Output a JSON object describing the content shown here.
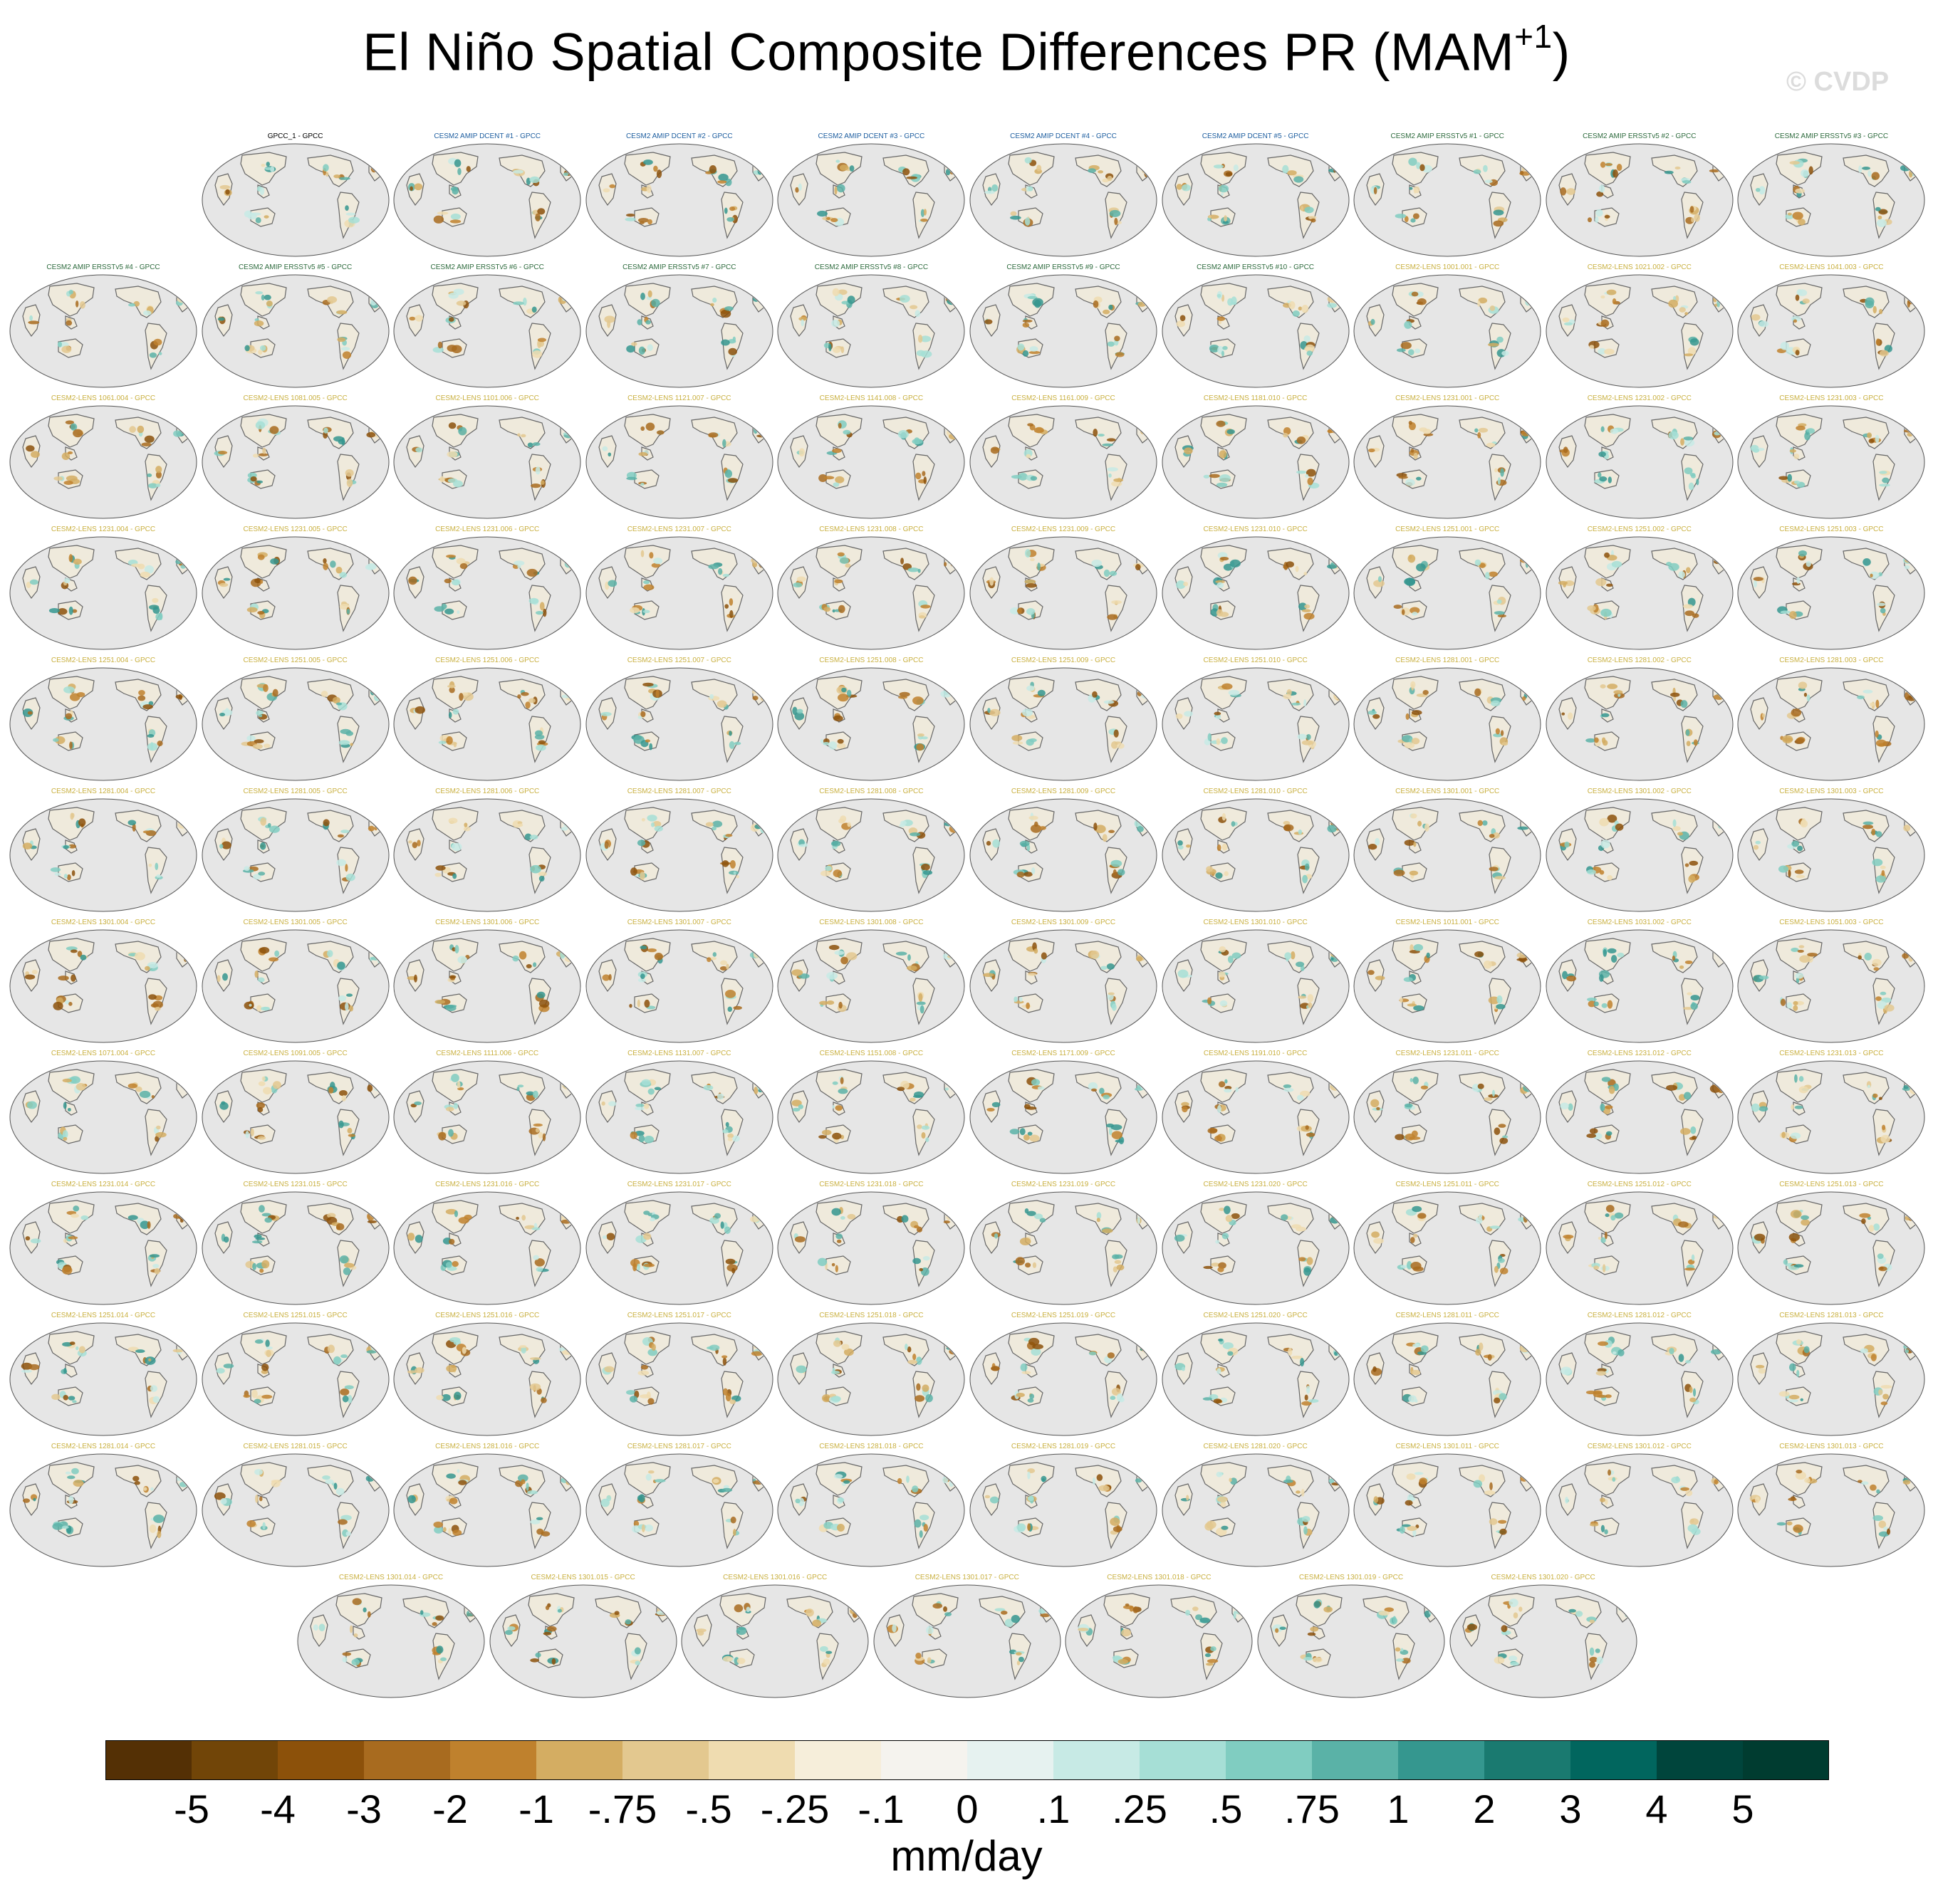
{
  "title_main": "El Niño Spatial Composite Differences PR (MAM",
  "title_sup": "+1",
  "title_close": ")",
  "watermark": "© CVDP",
  "colors": {
    "ocean": "#e6e6e6",
    "land": "#efeadc",
    "coast": "#666666",
    "title_obs": "#000000",
    "title_dcent": "#1f5fa0",
    "title_ersst": "#2e6b3e",
    "title_lens": "#c9b040"
  },
  "chart_data": {
    "type": "panel-map-grid",
    "units": "mm/day",
    "colorbar": {
      "labels": [
        "-5",
        "-4",
        "-3",
        "-2",
        "-1",
        "-.75",
        "-.5",
        "-.25",
        "-.1",
        "0",
        ".1",
        ".25",
        ".5",
        ".75",
        "1",
        "2",
        "3",
        "4",
        "5"
      ],
      "colors": [
        "#543005",
        "#714508",
        "#8c510a",
        "#a86b1f",
        "#bf812d",
        "#d4ad62",
        "#e3c88f",
        "#efdcb0",
        "#f6eeda",
        "#f5f3ee",
        "#e6f2f0",
        "#c7eae5",
        "#a6dfd6",
        "#80cdc1",
        "#5ab2a7",
        "#35978f",
        "#1a7a70",
        "#01665e",
        "#00453c",
        "#003c30"
      ]
    },
    "panels": [
      {
        "label": "GPCC_1 - GPCC",
        "group": "obs"
      },
      {
        "label": "CESM2 AMIP DCENT #1 - GPCC",
        "group": "dcent"
      },
      {
        "label": "CESM2 AMIP DCENT #2 - GPCC",
        "group": "dcent"
      },
      {
        "label": "CESM2 AMIP DCENT #3 - GPCC",
        "group": "dcent"
      },
      {
        "label": "CESM2 AMIP DCENT #4 - GPCC",
        "group": "dcent"
      },
      {
        "label": "CESM2 AMIP DCENT #5 - GPCC",
        "group": "dcent"
      },
      {
        "label": "CESM2 AMIP ERSSTv5 #1 - GPCC",
        "group": "ersst"
      },
      {
        "label": "CESM2 AMIP ERSSTv5 #2 - GPCC",
        "group": "ersst"
      },
      {
        "label": "CESM2 AMIP ERSSTv5 #3 - GPCC",
        "group": "ersst"
      },
      {
        "label": "CESM2 AMIP ERSSTv5 #4 - GPCC",
        "group": "ersst"
      },
      {
        "label": "CESM2 AMIP ERSSTv5 #5 - GPCC",
        "group": "ersst"
      },
      {
        "label": "CESM2 AMIP ERSSTv5 #6 - GPCC",
        "group": "ersst"
      },
      {
        "label": "CESM2 AMIP ERSSTv5 #7 - GPCC",
        "group": "ersst"
      },
      {
        "label": "CESM2 AMIP ERSSTv5 #8 - GPCC",
        "group": "ersst"
      },
      {
        "label": "CESM2 AMIP ERSSTv5 #9 - GPCC",
        "group": "ersst"
      },
      {
        "label": "CESM2 AMIP ERSSTv5 #10 - GPCC",
        "group": "ersst"
      },
      {
        "label": "CESM2-LENS 1001.001 - GPCC",
        "group": "lens"
      },
      {
        "label": "CESM2-LENS 1021.002 - GPCC",
        "group": "lens"
      },
      {
        "label": "CESM2-LENS 1041.003 - GPCC",
        "group": "lens"
      },
      {
        "label": "CESM2-LENS 1061.004 - GPCC",
        "group": "lens"
      },
      {
        "label": "CESM2-LENS 1081.005 - GPCC",
        "group": "lens"
      },
      {
        "label": "CESM2-LENS 1101.006 - GPCC",
        "group": "lens"
      },
      {
        "label": "CESM2-LENS 1121.007 - GPCC",
        "group": "lens"
      },
      {
        "label": "CESM2-LENS 1141.008 - GPCC",
        "group": "lens"
      },
      {
        "label": "CESM2-LENS 1161.009 - GPCC",
        "group": "lens"
      },
      {
        "label": "CESM2-LENS 1181.010 - GPCC",
        "group": "lens"
      },
      {
        "label": "CESM2-LENS 1231.001 - GPCC",
        "group": "lens"
      },
      {
        "label": "CESM2-LENS 1231.002 - GPCC",
        "group": "lens"
      },
      {
        "label": "CESM2-LENS 1231.003 - GPCC",
        "group": "lens"
      },
      {
        "label": "CESM2-LENS 1231.004 - GPCC",
        "group": "lens"
      },
      {
        "label": "CESM2-LENS 1231.005 - GPCC",
        "group": "lens"
      },
      {
        "label": "CESM2-LENS 1231.006 - GPCC",
        "group": "lens"
      },
      {
        "label": "CESM2-LENS 1231.007 - GPCC",
        "group": "lens"
      },
      {
        "label": "CESM2-LENS 1231.008 - GPCC",
        "group": "lens"
      },
      {
        "label": "CESM2-LENS 1231.009 - GPCC",
        "group": "lens"
      },
      {
        "label": "CESM2-LENS 1231.010 - GPCC",
        "group": "lens"
      },
      {
        "label": "CESM2-LENS 1251.001 - GPCC",
        "group": "lens"
      },
      {
        "label": "CESM2-LENS 1251.002 - GPCC",
        "group": "lens"
      },
      {
        "label": "CESM2-LENS 1251.003 - GPCC",
        "group": "lens"
      },
      {
        "label": "CESM2-LENS 1251.004 - GPCC",
        "group": "lens"
      },
      {
        "label": "CESM2-LENS 1251.005 - GPCC",
        "group": "lens"
      },
      {
        "label": "CESM2-LENS 1251.006 - GPCC",
        "group": "lens"
      },
      {
        "label": "CESM2-LENS 1251.007 - GPCC",
        "group": "lens"
      },
      {
        "label": "CESM2-LENS 1251.008 - GPCC",
        "group": "lens"
      },
      {
        "label": "CESM2-LENS 1251.009 - GPCC",
        "group": "lens"
      },
      {
        "label": "CESM2-LENS 1251.010 - GPCC",
        "group": "lens"
      },
      {
        "label": "CESM2-LENS 1281.001 - GPCC",
        "group": "lens"
      },
      {
        "label": "CESM2-LENS 1281.002 - GPCC",
        "group": "lens"
      },
      {
        "label": "CESM2-LENS 1281.003 - GPCC",
        "group": "lens"
      },
      {
        "label": "CESM2-LENS 1281.004 - GPCC",
        "group": "lens"
      },
      {
        "label": "CESM2-LENS 1281.005 - GPCC",
        "group": "lens"
      },
      {
        "label": "CESM2-LENS 1281.006 - GPCC",
        "group": "lens"
      },
      {
        "label": "CESM2-LENS 1281.007 - GPCC",
        "group": "lens"
      },
      {
        "label": "CESM2-LENS 1281.008 - GPCC",
        "group": "lens"
      },
      {
        "label": "CESM2-LENS 1281.009 - GPCC",
        "group": "lens"
      },
      {
        "label": "CESM2-LENS 1281.010 - GPCC",
        "group": "lens"
      },
      {
        "label": "CESM2-LENS 1301.001 - GPCC",
        "group": "lens"
      },
      {
        "label": "CESM2-LENS 1301.002 - GPCC",
        "group": "lens"
      },
      {
        "label": "CESM2-LENS 1301.003 - GPCC",
        "group": "lens"
      },
      {
        "label": "CESM2-LENS 1301.004 - GPCC",
        "group": "lens"
      },
      {
        "label": "CESM2-LENS 1301.005 - GPCC",
        "group": "lens"
      },
      {
        "label": "CESM2-LENS 1301.006 - GPCC",
        "group": "lens"
      },
      {
        "label": "CESM2-LENS 1301.007 - GPCC",
        "group": "lens"
      },
      {
        "label": "CESM2-LENS 1301.008 - GPCC",
        "group": "lens"
      },
      {
        "label": "CESM2-LENS 1301.009 - GPCC",
        "group": "lens"
      },
      {
        "label": "CESM2-LENS 1301.010 - GPCC",
        "group": "lens"
      },
      {
        "label": "CESM2-LENS 1011.001 - GPCC",
        "group": "lens"
      },
      {
        "label": "CESM2-LENS 1031.002 - GPCC",
        "group": "lens"
      },
      {
        "label": "CESM2-LENS 1051.003 - GPCC",
        "group": "lens"
      },
      {
        "label": "CESM2-LENS 1071.004 - GPCC",
        "group": "lens"
      },
      {
        "label": "CESM2-LENS 1091.005 - GPCC",
        "group": "lens"
      },
      {
        "label": "CESM2-LENS 1111.006 - GPCC",
        "group": "lens"
      },
      {
        "label": "CESM2-LENS 1131.007 - GPCC",
        "group": "lens"
      },
      {
        "label": "CESM2-LENS 1151.008 - GPCC",
        "group": "lens"
      },
      {
        "label": "CESM2-LENS 1171.009 - GPCC",
        "group": "lens"
      },
      {
        "label": "CESM2-LENS 1191.010 - GPCC",
        "group": "lens"
      },
      {
        "label": "CESM2-LENS 1231.011 - GPCC",
        "group": "lens"
      },
      {
        "label": "CESM2-LENS 1231.012 - GPCC",
        "group": "lens"
      },
      {
        "label": "CESM2-LENS 1231.013 - GPCC",
        "group": "lens"
      },
      {
        "label": "CESM2-LENS 1231.014 - GPCC",
        "group": "lens"
      },
      {
        "label": "CESM2-LENS 1231.015 - GPCC",
        "group": "lens"
      },
      {
        "label": "CESM2-LENS 1231.016 - GPCC",
        "group": "lens"
      },
      {
        "label": "CESM2-LENS 1231.017 - GPCC",
        "group": "lens"
      },
      {
        "label": "CESM2-LENS 1231.018 - GPCC",
        "group": "lens"
      },
      {
        "label": "CESM2-LENS 1231.019 - GPCC",
        "group": "lens"
      },
      {
        "label": "CESM2-LENS 1231.020 - GPCC",
        "group": "lens"
      },
      {
        "label": "CESM2-LENS 1251.011 - GPCC",
        "group": "lens"
      },
      {
        "label": "CESM2-LENS 1251.012 - GPCC",
        "group": "lens"
      },
      {
        "label": "CESM2-LENS 1251.013 - GPCC",
        "group": "lens"
      },
      {
        "label": "CESM2-LENS 1251.014 - GPCC",
        "group": "lens"
      },
      {
        "label": "CESM2-LENS 1251.015 - GPCC",
        "group": "lens"
      },
      {
        "label": "CESM2-LENS 1251.016 - GPCC",
        "group": "lens"
      },
      {
        "label": "CESM2-LENS 1251.017 - GPCC",
        "group": "lens"
      },
      {
        "label": "CESM2-LENS 1251.018 - GPCC",
        "group": "lens"
      },
      {
        "label": "CESM2-LENS 1251.019 - GPCC",
        "group": "lens"
      },
      {
        "label": "CESM2-LENS 1251.020 - GPCC",
        "group": "lens"
      },
      {
        "label": "CESM2-LENS 1281.011 - GPCC",
        "group": "lens"
      },
      {
        "label": "CESM2-LENS 1281.012 - GPCC",
        "group": "lens"
      },
      {
        "label": "CESM2-LENS 1281.013 - GPCC",
        "group": "lens"
      },
      {
        "label": "CESM2-LENS 1281.014 - GPCC",
        "group": "lens"
      },
      {
        "label": "CESM2-LENS 1281.015 - GPCC",
        "group": "lens"
      },
      {
        "label": "CESM2-LENS 1281.016 - GPCC",
        "group": "lens"
      },
      {
        "label": "CESM2-LENS 1281.017 - GPCC",
        "group": "lens"
      },
      {
        "label": "CESM2-LENS 1281.018 - GPCC",
        "group": "lens"
      },
      {
        "label": "CESM2-LENS 1281.019 - GPCC",
        "group": "lens"
      },
      {
        "label": "CESM2-LENS 1281.020 - GPCC",
        "group": "lens"
      },
      {
        "label": "CESM2-LENS 1301.011 - GPCC",
        "group": "lens"
      },
      {
        "label": "CESM2-LENS 1301.012 - GPCC",
        "group": "lens"
      },
      {
        "label": "CESM2-LENS 1301.013 - GPCC",
        "group": "lens"
      },
      {
        "label": "CESM2-LENS 1301.014 - GPCC",
        "group": "lens"
      },
      {
        "label": "CESM2-LENS 1301.015 - GPCC",
        "group": "lens"
      },
      {
        "label": "CESM2-LENS 1301.016 - GPCC",
        "group": "lens"
      },
      {
        "label": "CESM2-LENS 1301.017 - GPCC",
        "group": "lens"
      },
      {
        "label": "CESM2-LENS 1301.018 - GPCC",
        "group": "lens"
      },
      {
        "label": "CESM2-LENS 1301.019 - GPCC",
        "group": "lens"
      },
      {
        "label": "CESM2-LENS 1301.020 - GPCC",
        "group": "lens"
      }
    ]
  }
}
